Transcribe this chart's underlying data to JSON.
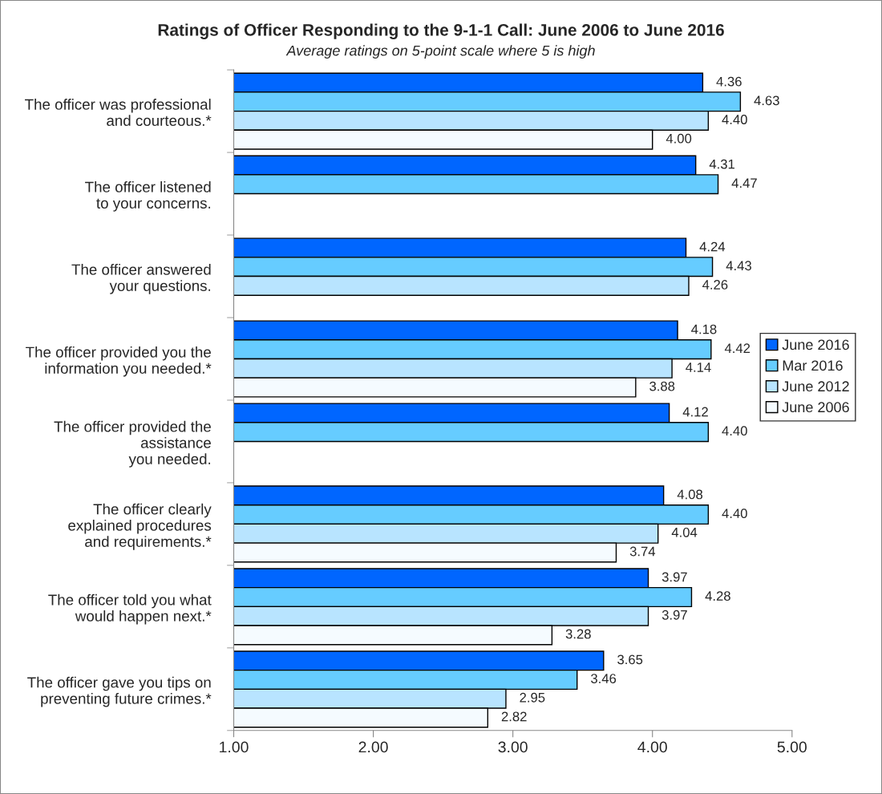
{
  "chart_data": {
    "type": "bar",
    "orientation": "horizontal",
    "title": "Ratings of Officer Responding to the 9-1-1 Call: June 2006 to June 2016",
    "subtitle": "Average ratings on 5-point scale where 5 is high",
    "categories": [
      "The officer was professional\nand courteous.*",
      "The officer listened\nto your concerns.",
      "The officer answered\nyour questions.",
      "The officer provided you the\ninformation you needed.*",
      "The officer provided the\nassistance\nyou needed.",
      "The officer clearly\nexplained procedures\nand requirements.*",
      "The officer told you what\nwould happen next.*",
      "The officer gave you tips on\npreventing future crimes.*"
    ],
    "series": [
      {
        "name": "June 2016",
        "color": "#0066ff",
        "values": [
          4.36,
          4.31,
          4.24,
          4.18,
          4.12,
          4.08,
          3.97,
          3.65
        ],
        "value_labels": [
          "4.36",
          "4.31",
          "4.24",
          "4.18",
          "4.12",
          "4.08",
          "3.97",
          "3.65"
        ]
      },
      {
        "name": "Mar 2016",
        "color": "#66ccff",
        "values": [
          4.63,
          4.47,
          4.43,
          4.42,
          4.4,
          4.4,
          4.28,
          3.46
        ],
        "value_labels": [
          "4.63",
          "4.47",
          "4.43",
          "4.42",
          "4.40",
          "4.40",
          "4.28",
          "3.46"
        ]
      },
      {
        "name": "June 2012",
        "color": "#b8e4ff",
        "values": [
          4.4,
          null,
          4.26,
          4.14,
          null,
          4.04,
          3.97,
          2.95
        ],
        "value_labels": [
          "4.40",
          null,
          "4.26",
          "4.14",
          null,
          "4.04",
          "3.97",
          "2.95"
        ]
      },
      {
        "name": "June 2006",
        "color": "#f5fbff",
        "values": [
          4.0,
          null,
          null,
          3.88,
          null,
          3.74,
          3.28,
          2.82
        ],
        "value_labels": [
          "4.00",
          null,
          null,
          "3.88",
          null,
          "3.74",
          "3.28",
          "2.82"
        ]
      }
    ],
    "xlim": [
      1,
      5
    ],
    "xticks": [
      {
        "value": 1,
        "label": "1.00"
      },
      {
        "value": 2,
        "label": "2.00"
      },
      {
        "value": 3,
        "label": "3.00"
      },
      {
        "value": 4,
        "label": "4.00"
      },
      {
        "value": 5,
        "label": "5.00"
      }
    ],
    "grid": false,
    "legend": "right"
  }
}
